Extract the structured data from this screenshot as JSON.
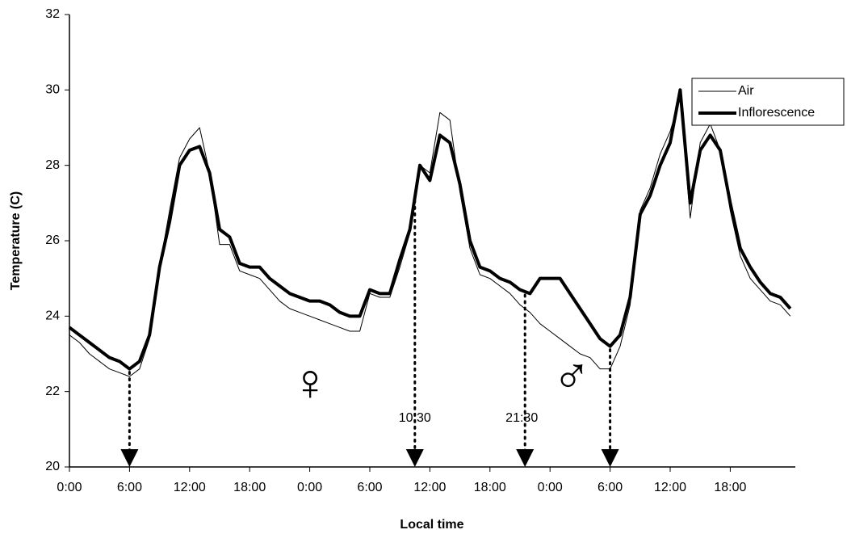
{
  "chart_data": {
    "type": "line",
    "xlabel": "Local time",
    "ylabel": "Temperature (C)",
    "x": [
      0,
      1,
      2,
      3,
      4,
      5,
      6,
      7,
      8,
      9,
      10,
      11,
      12,
      13,
      14,
      15,
      16,
      17,
      18,
      19,
      20,
      21,
      22,
      23,
      24,
      25,
      26,
      27,
      28,
      29,
      30,
      31,
      32,
      33,
      34,
      35,
      36,
      37,
      38,
      39,
      40,
      41,
      42,
      43,
      44,
      45,
      46,
      47,
      48,
      49,
      50,
      51,
      52,
      53,
      54,
      55,
      56,
      57,
      58,
      59,
      60,
      61,
      62,
      63,
      64,
      65,
      66,
      67,
      68,
      69,
      70,
      71,
      72
    ],
    "series": [
      {
        "name": "Air",
        "color": "#000000",
        "width": 1,
        "values": [
          23.5,
          23.3,
          23.0,
          22.8,
          22.6,
          22.5,
          22.4,
          22.6,
          23.4,
          25.3,
          26.8,
          28.2,
          28.7,
          29.0,
          27.8,
          25.9,
          25.9,
          25.2,
          25.1,
          25.0,
          24.7,
          24.4,
          24.2,
          24.1,
          24.0,
          23.9,
          23.8,
          23.7,
          23.6,
          23.6,
          24.6,
          24.5,
          24.5,
          25.3,
          26.2,
          28.0,
          27.8,
          29.4,
          29.2,
          27.3,
          25.8,
          25.1,
          25.0,
          24.8,
          24.6,
          24.3,
          24.1,
          23.8,
          23.6,
          23.4,
          23.2,
          23.0,
          22.9,
          22.6,
          22.6,
          23.2,
          24.3,
          26.8,
          27.4,
          28.3,
          28.9,
          29.8,
          26.6,
          28.6,
          29.1,
          28.4,
          26.8,
          25.6,
          25.0,
          24.7,
          24.4,
          24.3,
          24.0
        ]
      },
      {
        "name": "Inflorescence",
        "color": "#000000",
        "width": 4,
        "values": [
          23.7,
          23.5,
          23.3,
          23.1,
          22.9,
          22.8,
          22.6,
          22.8,
          23.5,
          25.3,
          26.5,
          28.0,
          28.4,
          28.5,
          27.8,
          26.3,
          26.1,
          25.4,
          25.3,
          25.3,
          25.0,
          24.8,
          24.6,
          24.5,
          24.4,
          24.4,
          24.3,
          24.1,
          24.0,
          24.0,
          24.7,
          24.6,
          24.6,
          25.5,
          26.3,
          28.0,
          27.6,
          28.8,
          28.6,
          27.5,
          26.0,
          25.3,
          25.2,
          25.0,
          24.9,
          24.7,
          24.6,
          25.0,
          25.0,
          25.0,
          24.6,
          24.2,
          23.8,
          23.4,
          23.2,
          23.5,
          24.5,
          26.7,
          27.2,
          28.0,
          28.6,
          30.0,
          27.0,
          28.4,
          28.8,
          28.4,
          27.0,
          25.8,
          25.3,
          24.9,
          24.6,
          24.5,
          24.2
        ]
      }
    ],
    "xlim": [
      0,
      72.5
    ],
    "xticks": [
      {
        "value": 0,
        "label": "0:00"
      },
      {
        "value": 6,
        "label": "6:00"
      },
      {
        "value": 12,
        "label": "12:00"
      },
      {
        "value": 18,
        "label": "18:00"
      },
      {
        "value": 24,
        "label": "0:00"
      },
      {
        "value": 30,
        "label": "6:00"
      },
      {
        "value": 36,
        "label": "12:00"
      },
      {
        "value": 42,
        "label": "18:00"
      },
      {
        "value": 48,
        "label": "0:00"
      },
      {
        "value": 54,
        "label": "6:00"
      },
      {
        "value": 60,
        "label": "12:00"
      },
      {
        "value": 66,
        "label": "18:00"
      }
    ],
    "ylim": [
      20,
      32
    ],
    "yticks": [
      20,
      22,
      24,
      26,
      28,
      30,
      32
    ],
    "arrows_x": [
      6,
      34.5,
      45.5,
      54
    ],
    "annotations": [
      "10:30",
      "21:30",
      "♀",
      "♂"
    ],
    "legend": "top-right",
    "grid": false
  }
}
